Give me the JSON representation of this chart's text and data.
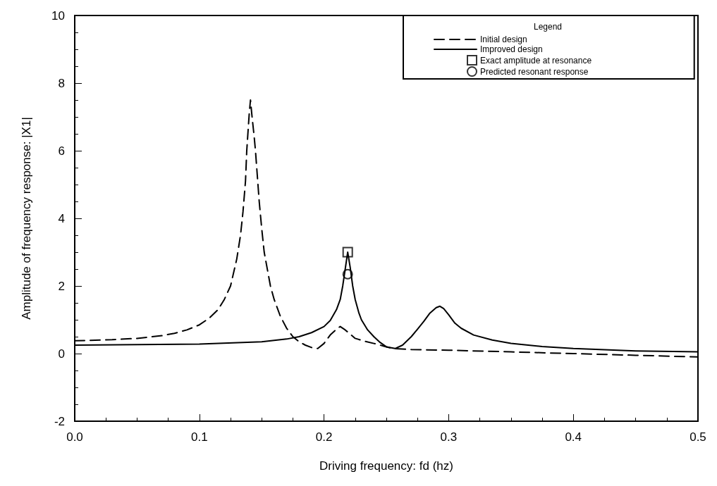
{
  "chart_data": {
    "type": "line",
    "xlabel": "Driving frequency: fd (hz)",
    "ylabel": "Amplitude of frequency response: |X1|",
    "legend_title": "Legend",
    "legend": "top right",
    "grid": false,
    "xlim": [
      0,
      0.5
    ],
    "xticks": [
      {
        "value": 0,
        "label": "0.0"
      },
      0.1,
      0.2,
      0.3,
      0.4,
      0.5
    ],
    "ylim": [
      -2,
      10
    ],
    "yticks": [
      -2,
      0,
      2,
      4,
      6,
      8,
      10
    ],
    "series": [
      {
        "name": "Initial design",
        "color": "#000000",
        "line_style": "dashed",
        "marker": "none",
        "x": [
          0,
          0.03,
          0.05,
          0.07,
          0.08,
          0.09,
          0.1,
          0.108,
          0.115,
          0.12,
          0.125,
          0.13,
          0.133,
          0.135,
          0.137,
          0.138,
          0.14,
          0.141,
          0.142,
          0.144,
          0.145,
          0.147,
          0.148,
          0.15,
          0.152,
          0.155,
          0.157,
          0.16,
          0.165,
          0.17,
          0.175,
          0.18,
          0.185,
          0.19,
          0.195,
          0.2,
          0.205,
          0.21,
          0.213,
          0.217,
          0.225,
          0.232,
          0.24,
          0.248,
          0.255,
          0.27,
          0.3,
          0.35,
          0.4,
          0.45,
          0.5
        ],
        "values": [
          0.38,
          0.41,
          0.45,
          0.53,
          0.6,
          0.7,
          0.85,
          1.05,
          1.3,
          1.6,
          2.0,
          2.8,
          3.5,
          4.2,
          5.1,
          6.0,
          7.1,
          7.5,
          7.1,
          6.4,
          6.0,
          5.0,
          4.5,
          3.7,
          3.0,
          2.4,
          2.0,
          1.6,
          1.1,
          0.75,
          0.5,
          0.35,
          0.25,
          0.18,
          0.15,
          0.3,
          0.55,
          0.72,
          0.8,
          0.7,
          0.45,
          0.37,
          0.3,
          0.22,
          0.15,
          0.12,
          0.1,
          0.05,
          0,
          -0.05,
          -0.1
        ]
      },
      {
        "name": "Improved design",
        "color": "#000000",
        "line_style": "solid",
        "marker": "none",
        "x": [
          0,
          0.1,
          0.15,
          0.17,
          0.18,
          0.19,
          0.2,
          0.205,
          0.21,
          0.213,
          0.215,
          0.217,
          0.219,
          0.221,
          0.223,
          0.225,
          0.228,
          0.23,
          0.235,
          0.24,
          0.245,
          0.25,
          0.257,
          0.263,
          0.27,
          0.275,
          0.28,
          0.285,
          0.29,
          0.293,
          0.296,
          0.3,
          0.305,
          0.31,
          0.32,
          0.335,
          0.35,
          0.375,
          0.4,
          0.45,
          0.5
        ],
        "values": [
          0.25,
          0.28,
          0.35,
          0.43,
          0.5,
          0.62,
          0.8,
          0.98,
          1.3,
          1.6,
          2.0,
          2.5,
          3.0,
          2.55,
          2.0,
          1.6,
          1.2,
          1.0,
          0.7,
          0.5,
          0.33,
          0.2,
          0.15,
          0.25,
          0.5,
          0.72,
          0.95,
          1.2,
          1.36,
          1.4,
          1.33,
          1.15,
          0.9,
          0.75,
          0.55,
          0.4,
          0.3,
          0.21,
          0.15,
          0.08,
          0.05
        ]
      },
      {
        "name": "Exact amplitude at resonance",
        "type": "scatter",
        "color": "#000000",
        "marker": "square",
        "x": [
          0.219
        ],
        "values": [
          3.0
        ]
      },
      {
        "name": "Predicted resonant response",
        "type": "scatter",
        "color": "#000000",
        "marker": "circle",
        "x": [
          0.219
        ],
        "values": [
          2.35
        ]
      }
    ]
  }
}
